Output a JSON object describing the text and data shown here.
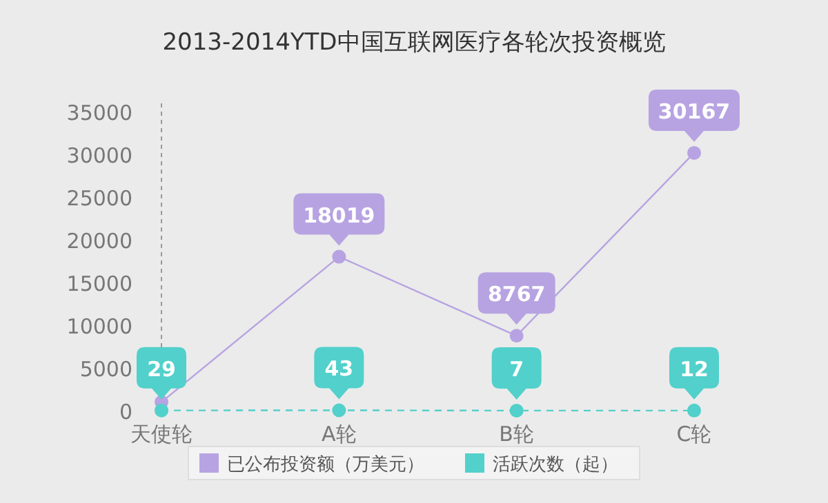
{
  "chart_data": {
    "type": "line",
    "title": "2013-2014YTD中国互联网医疗各轮次投资概览",
    "categories": [
      "天使轮",
      "A轮",
      "B轮",
      "C轮"
    ],
    "series": [
      {
        "name": "已公布投资额（万美元）",
        "color": "#b7a3e2",
        "values": [
          1000,
          18019,
          8767,
          30167
        ],
        "value_labels": [
          null,
          "18019",
          "8767",
          "30167"
        ],
        "line_style": "solid"
      },
      {
        "name": "活跃次数（起）",
        "color": "#52d0cb",
        "values": [
          29,
          43,
          7,
          12
        ],
        "value_labels": [
          "29",
          "43",
          "7",
          "12"
        ],
        "line_style": "dashed"
      }
    ],
    "ylim": [
      0,
      35000
    ],
    "yticks": [
      0,
      5000,
      10000,
      15000,
      20000,
      25000,
      30000,
      35000
    ],
    "marker": "circle",
    "legend": "bottom"
  }
}
